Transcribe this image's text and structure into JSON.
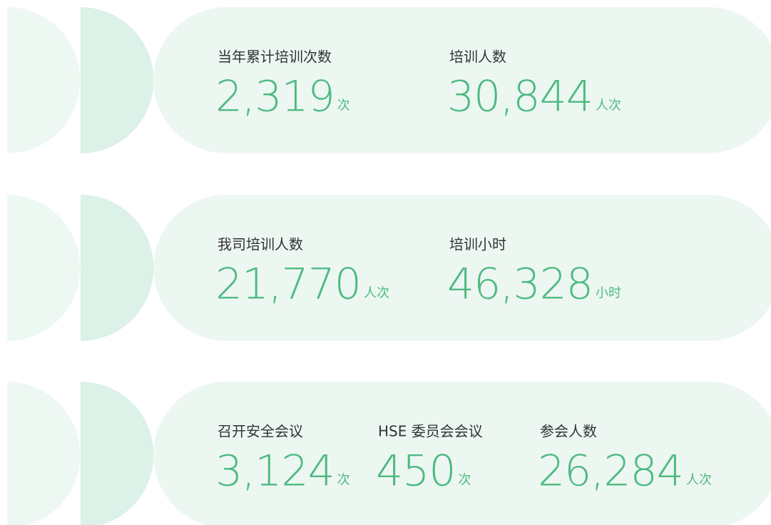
{
  "rows": [
    {
      "items": [
        {
          "label": "当年累计培训次数",
          "value": "2,319",
          "unit": "次"
        },
        {
          "label": "培训人数",
          "value": "30,844",
          "unit": "人次"
        }
      ]
    },
    {
      "items": [
        {
          "label": "我司培训人数",
          "value": "21,770",
          "unit": "人次"
        },
        {
          "label": "培训小时",
          "value": "46,328",
          "unit": "小时"
        }
      ]
    },
    {
      "items": [
        {
          "label": "召开安全会议",
          "value": "3,124",
          "unit": "次"
        },
        {
          "label": "HSE 委员会会议",
          "value": "450",
          "unit": "次"
        },
        {
          "label": "参会人数",
          "value": "26,284",
          "unit": "人次"
        }
      ]
    }
  ]
}
